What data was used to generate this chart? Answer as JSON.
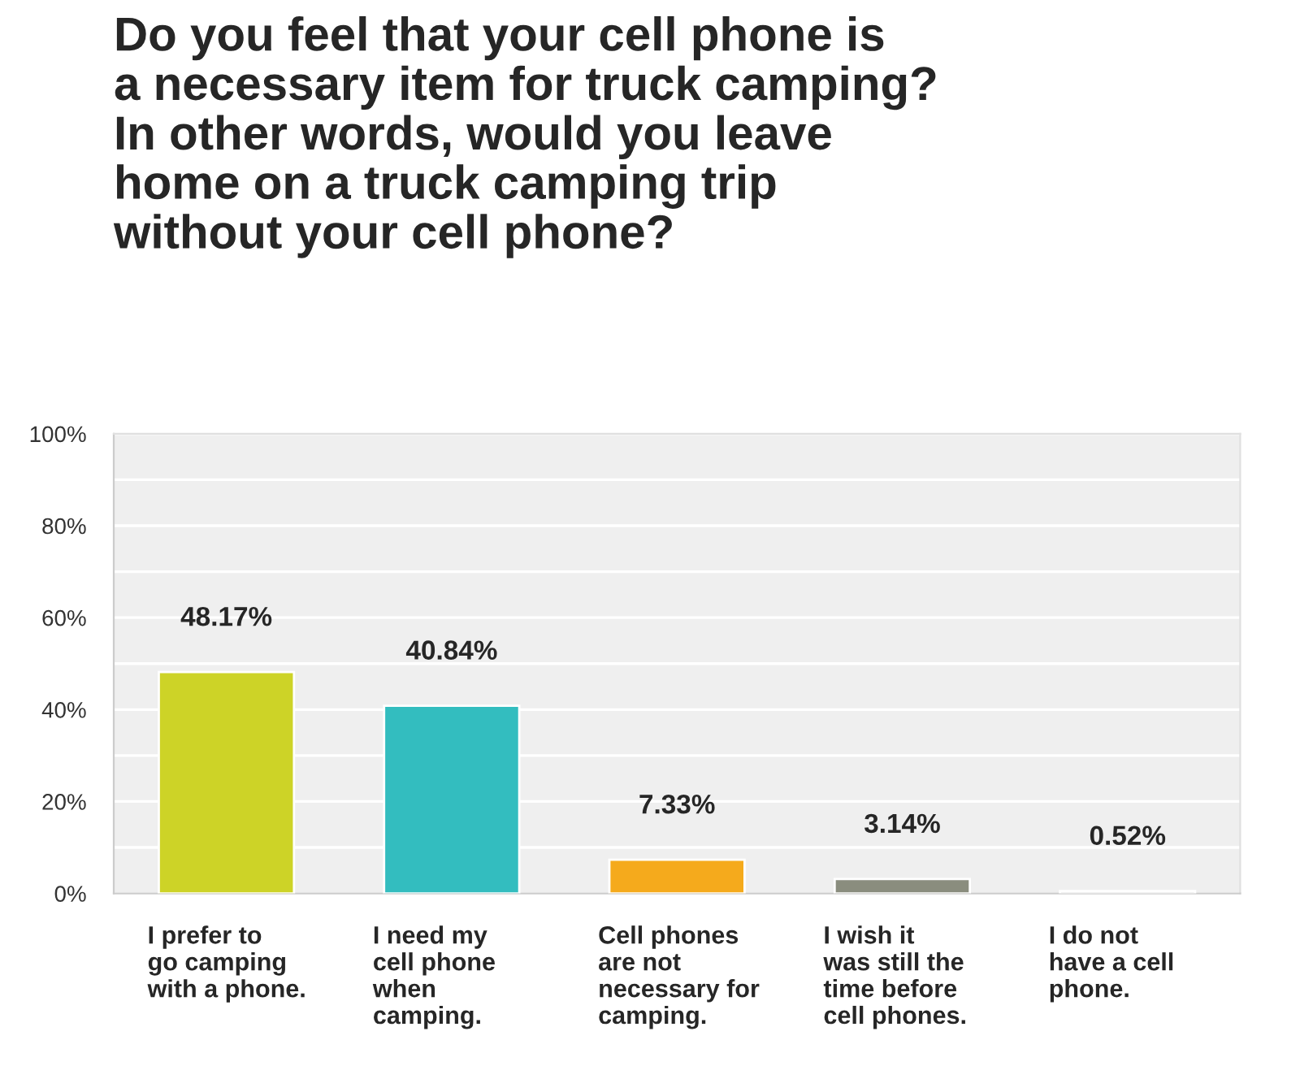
{
  "chart_data": {
    "type": "bar",
    "title": "Do you feel that your cell phone is\na necessary item for truck camping?\nIn other words, would you leave\nhome on a truck camping trip\nwithout your cell phone?",
    "categories": [
      "I prefer to\ngo camping\nwith a phone.",
      "I need my\ncell phone\nwhen\ncamping.",
      "Cell phones\nare not\nnecessary for\ncamping.",
      "I wish it\nwas still the\ntime before\ncell phones.",
      "I do not\nhave a cell\nphone."
    ],
    "values": [
      48.17,
      40.84,
      7.33,
      3.14,
      0.52
    ],
    "colors": [
      "#cdd327",
      "#33bdbf",
      "#f5aa1c",
      "#8a8d7e",
      "#c9c9c9"
    ],
    "value_labels": [
      "48.17%",
      "40.84%",
      "7.33%",
      "3.14%",
      "0.52%"
    ],
    "ylim": [
      0,
      100
    ],
    "yticks": [
      {
        "value": 0,
        "label": "0%"
      },
      {
        "value": 10,
        "label": null
      },
      {
        "value": 20,
        "label": "20%"
      },
      {
        "value": 30,
        "label": null
      },
      {
        "value": 40,
        "label": "40%"
      },
      {
        "value": 50,
        "label": null
      },
      {
        "value": 60,
        "label": "60%"
      },
      {
        "value": 70,
        "label": null
      },
      {
        "value": 80,
        "label": "80%"
      },
      {
        "value": 90,
        "label": null
      },
      {
        "value": 100,
        "label": "100%"
      }
    ],
    "grid": "y",
    "legend": false
  }
}
